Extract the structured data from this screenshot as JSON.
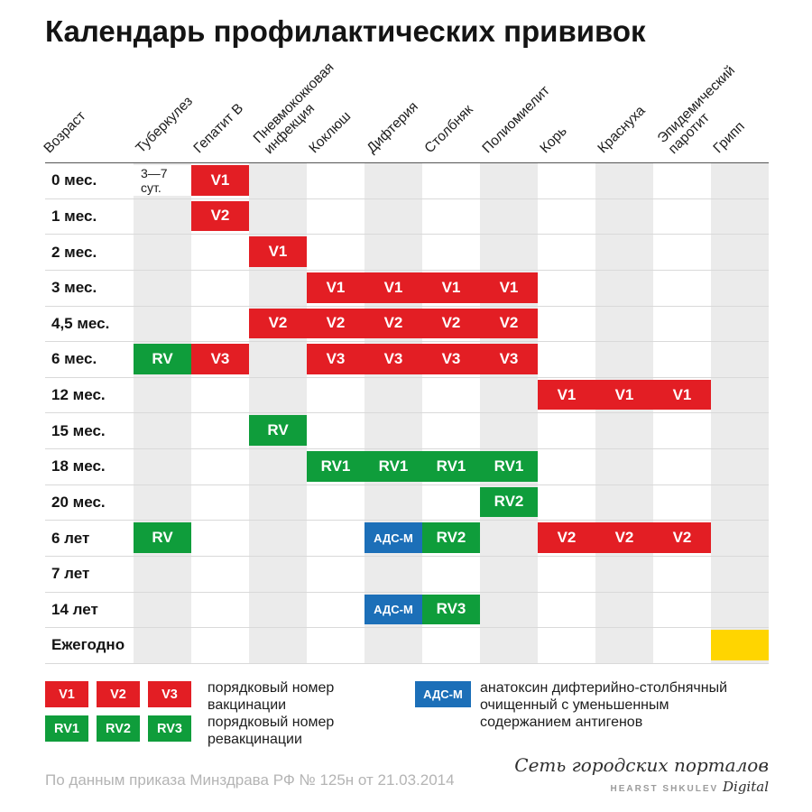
{
  "title": "Календарь профилактических прививок",
  "colors": {
    "vaccination": "#e31e24",
    "revaccination": "#0f9d3b",
    "adsm": "#1c6fb8",
    "flu": "#ffd500",
    "note": "#ffffff",
    "stripe": "#ebebeb"
  },
  "chart_data": {
    "type": "table",
    "title": "Календарь профилактических прививок",
    "age_column_header": "Возраст",
    "columns": [
      "Туберкулез",
      "Гепатит В",
      "Пневмококковая\nинфекция",
      "Коклюш",
      "Дифтерия",
      "Столбняк",
      "Полиомиелит",
      "Корь",
      "Краснуха",
      "Эпидемический\nпаротит",
      "Грипп"
    ],
    "rows": [
      {
        "age": "0 мес.",
        "cells": [
          {
            "col": 0,
            "label": "3—7\nсут.",
            "kind": "note"
          },
          {
            "col": 1,
            "label": "V1",
            "kind": "vaccination"
          }
        ]
      },
      {
        "age": "1 мес.",
        "cells": [
          {
            "col": 1,
            "label": "V2",
            "kind": "vaccination"
          }
        ]
      },
      {
        "age": "2 мес.",
        "cells": [
          {
            "col": 2,
            "label": "V1",
            "kind": "vaccination"
          }
        ]
      },
      {
        "age": "3 мес.",
        "cells": [
          {
            "col": 3,
            "label": "V1",
            "kind": "vaccination"
          },
          {
            "col": 4,
            "label": "V1",
            "kind": "vaccination"
          },
          {
            "col": 5,
            "label": "V1",
            "kind": "vaccination"
          },
          {
            "col": 6,
            "label": "V1",
            "kind": "vaccination"
          }
        ]
      },
      {
        "age": "4,5 мес.",
        "cells": [
          {
            "col": 2,
            "label": "V2",
            "kind": "vaccination"
          },
          {
            "col": 3,
            "label": "V2",
            "kind": "vaccination"
          },
          {
            "col": 4,
            "label": "V2",
            "kind": "vaccination"
          },
          {
            "col": 5,
            "label": "V2",
            "kind": "vaccination"
          },
          {
            "col": 6,
            "label": "V2",
            "kind": "vaccination"
          }
        ]
      },
      {
        "age": "6 мес.",
        "cells": [
          {
            "col": 0,
            "label": "RV",
            "kind": "revaccination"
          },
          {
            "col": 1,
            "label": "V3",
            "kind": "vaccination"
          },
          {
            "col": 3,
            "label": "V3",
            "kind": "vaccination"
          },
          {
            "col": 4,
            "label": "V3",
            "kind": "vaccination"
          },
          {
            "col": 5,
            "label": "V3",
            "kind": "vaccination"
          },
          {
            "col": 6,
            "label": "V3",
            "kind": "vaccination"
          }
        ]
      },
      {
        "age": "12 мес.",
        "cells": [
          {
            "col": 7,
            "label": "V1",
            "kind": "vaccination"
          },
          {
            "col": 8,
            "label": "V1",
            "kind": "vaccination"
          },
          {
            "col": 9,
            "label": "V1",
            "kind": "vaccination"
          }
        ]
      },
      {
        "age": "15 мес.",
        "cells": [
          {
            "col": 2,
            "label": "RV",
            "kind": "revaccination"
          }
        ]
      },
      {
        "age": "18 мес.",
        "cells": [
          {
            "col": 3,
            "label": "RV1",
            "kind": "revaccination"
          },
          {
            "col": 4,
            "label": "RV1",
            "kind": "revaccination"
          },
          {
            "col": 5,
            "label": "RV1",
            "kind": "revaccination"
          },
          {
            "col": 6,
            "label": "RV1",
            "kind": "revaccination"
          }
        ]
      },
      {
        "age": "20 мес.",
        "cells": [
          {
            "col": 6,
            "label": "RV2",
            "kind": "revaccination"
          }
        ]
      },
      {
        "age": "6 лет",
        "cells": [
          {
            "col": 0,
            "label": "RV",
            "kind": "revaccination"
          },
          {
            "col": 4,
            "label": "АДС-М",
            "kind": "adsm"
          },
          {
            "col": 5,
            "label": "RV2",
            "kind": "revaccination"
          },
          {
            "col": 7,
            "label": "V2",
            "kind": "vaccination"
          },
          {
            "col": 8,
            "label": "V2",
            "kind": "vaccination"
          },
          {
            "col": 9,
            "label": "V2",
            "kind": "vaccination"
          }
        ]
      },
      {
        "age": "7 лет",
        "cells": []
      },
      {
        "age": "14 лет",
        "cells": [
          {
            "col": 4,
            "label": "АДС-М",
            "kind": "adsm"
          },
          {
            "col": 5,
            "label": "RV3",
            "kind": "revaccination"
          }
        ]
      },
      {
        "age": "Ежегодно",
        "cells": [
          {
            "col": 10,
            "label": "",
            "kind": "flu"
          }
        ]
      }
    ]
  },
  "legend": {
    "vaccination": {
      "boxes": [
        "V1",
        "V2",
        "V3"
      ],
      "label": "порядковый номер\nвакцинации"
    },
    "revaccination": {
      "boxes": [
        "RV1",
        "RV2",
        "RV3"
      ],
      "label": "порядковый номер\nревакцинации"
    },
    "adsm": {
      "box": "АДС-М",
      "label": "анатоксин дифтерийно-столбнячный\nочищенный с уменьшенным\nсодержанием антигенов"
    }
  },
  "footer": {
    "source": "По данным приказа Минздрава РФ № 125н от 21.03.2014",
    "brand_script": "Сеть городских порталов",
    "brand_caps": "HEARST SHKULEV",
    "brand_italic": "Digital"
  }
}
